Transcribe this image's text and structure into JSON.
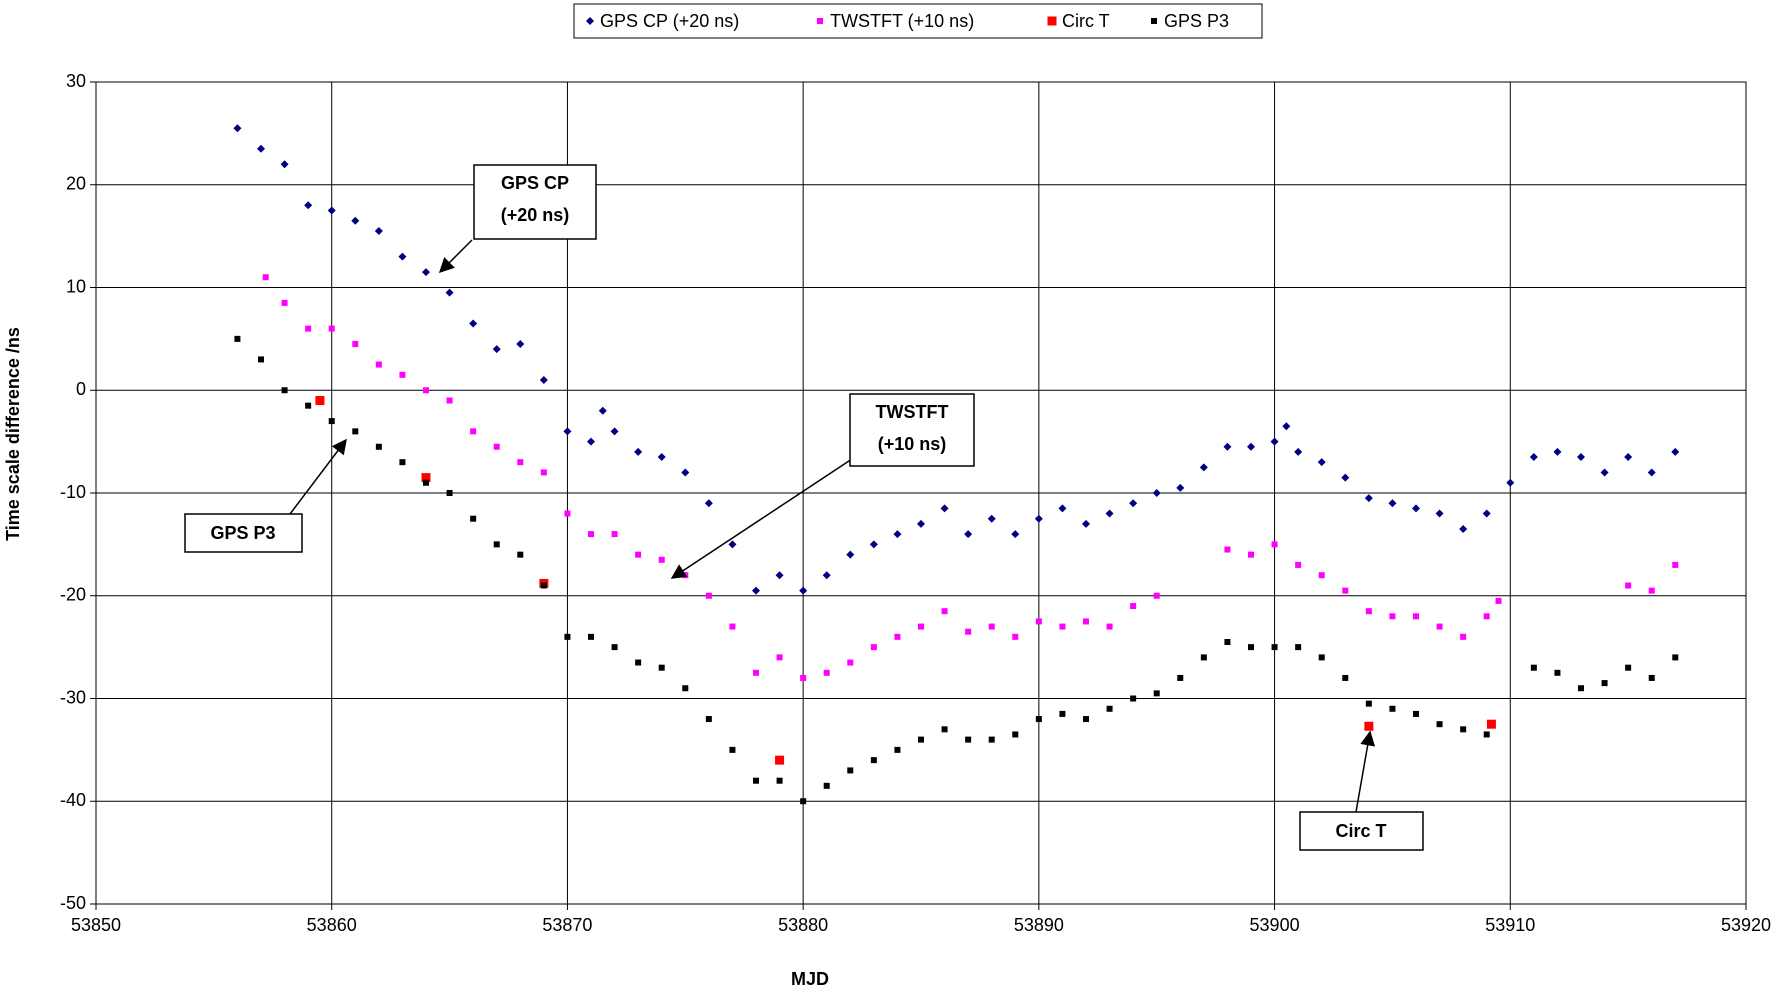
{
  "chart_data": {
    "type": "scatter",
    "xlabel": "MJD",
    "ylabel": "Time scale difference /ns",
    "xlim": [
      53850,
      53920
    ],
    "xticks": [
      53850,
      53860,
      53870,
      53880,
      53890,
      53900,
      53910,
      53920
    ],
    "ylim": [
      -50,
      30
    ],
    "yticks": [
      -50,
      -40,
      -30,
      -20,
      -10,
      0,
      10,
      20,
      30
    ],
    "grid": true,
    "legend": "top",
    "series": [
      {
        "name": "GPS CP (+20 ns)",
        "color": "#000080",
        "marker": "diamond",
        "x": [
          53856,
          53857,
          53858,
          53859,
          53860,
          53861,
          53862,
          53863,
          53864,
          53865,
          53866,
          53867,
          53868,
          53869,
          53870,
          53871,
          53871.5,
          53872,
          53873,
          53874,
          53875,
          53876,
          53877,
          53878,
          53879,
          53880,
          53881,
          53882,
          53883,
          53884,
          53885,
          53886,
          53887,
          53888,
          53889,
          53890,
          53891,
          53892,
          53893,
          53894,
          53895,
          53896,
          53897,
          53898,
          53899,
          53900,
          53900.5,
          53901,
          53902,
          53903,
          53904,
          53905,
          53906,
          53907,
          53908,
          53909,
          53910,
          53911,
          53912,
          53913,
          53914,
          53915,
          53916,
          53917
        ],
        "values": [
          25.5,
          23.5,
          22,
          18,
          17.5,
          16.5,
          15.5,
          13,
          11.5,
          9.5,
          6.5,
          4,
          4.5,
          1,
          -4,
          -5,
          -2,
          -4,
          -6,
          -6.5,
          -8,
          -11,
          -15,
          -19.5,
          -18,
          -19.5,
          -18,
          -16,
          -15,
          -14,
          -13,
          -11.5,
          -14,
          -12.5,
          -14,
          -12.5,
          -11.5,
          -13,
          -12,
          -11,
          -10,
          -9.5,
          -7.5,
          -5.5,
          -5.5,
          -5,
          -3.5,
          -6,
          -7,
          -8.5,
          -10.5,
          -11,
          -11.5,
          -12,
          -13.5,
          -12,
          -9,
          -6.5,
          -6,
          -6.5,
          -8,
          -6.5,
          -8,
          -6
        ]
      },
      {
        "name": "TWSTFT (+10 ns)",
        "color": "#FF00FF",
        "marker": "square",
        "x": [
          53857.2,
          53858,
          53859,
          53860,
          53861,
          53862,
          53863,
          53864,
          53865,
          53866,
          53867,
          53868,
          53869,
          53870,
          53871,
          53872,
          53873,
          53874,
          53875,
          53876,
          53877,
          53878,
          53879,
          53880,
          53881,
          53882,
          53883,
          53884,
          53885,
          53886,
          53887,
          53888,
          53889,
          53890,
          53891,
          53892,
          53893,
          53894,
          53895,
          53898,
          53899,
          53900,
          53901,
          53902,
          53903,
          53904,
          53905,
          53906,
          53907,
          53908,
          53909,
          53909.5,
          53915,
          53916,
          53917
        ],
        "values": [
          11,
          8.5,
          6,
          6,
          4.5,
          2.5,
          1.5,
          0,
          -1,
          -4,
          -5.5,
          -7,
          -8,
          -12,
          -14,
          -14,
          -16,
          -16.5,
          -18,
          -20,
          -23,
          -27.5,
          -26,
          -28,
          -27.5,
          -26.5,
          -25,
          -24,
          -23,
          -21.5,
          -23.5,
          -23,
          -24,
          -22.5,
          -23,
          -22.5,
          -23,
          -21,
          -20,
          -15.5,
          -16,
          -15,
          -17,
          -18,
          -19.5,
          -21.5,
          -22,
          -22,
          -23,
          -24,
          -22,
          -20.5,
          -19,
          -19.5,
          -17
        ]
      },
      {
        "name": "Circ T",
        "color": "#FF0000",
        "marker": "bigsquare",
        "x": [
          53859.5,
          53864,
          53869,
          53879,
          53904,
          53909.2
        ],
        "values": [
          -1,
          -8.5,
          -18.8,
          -36,
          -32.7,
          -32.5
        ]
      },
      {
        "name": "GPS P3",
        "color": "#000000",
        "marker": "square",
        "x": [
          53856,
          53857,
          53858,
          53859,
          53860,
          53861,
          53862,
          53863,
          53864,
          53865,
          53866,
          53867,
          53868,
          53869,
          53870,
          53871,
          53872,
          53873,
          53874,
          53875,
          53876,
          53877,
          53878,
          53879,
          53880,
          53881,
          53882,
          53883,
          53884,
          53885,
          53886,
          53887,
          53888,
          53889,
          53890,
          53891,
          53892,
          53893,
          53894,
          53895,
          53896,
          53897,
          53898,
          53899,
          53900,
          53901,
          53902,
          53903,
          53904,
          53905,
          53906,
          53907,
          53908,
          53909,
          53911,
          53912,
          53913,
          53914,
          53915,
          53916,
          53917
        ],
        "values": [
          5,
          3,
          0,
          -1.5,
          -3,
          -4,
          -5.5,
          -7,
          -9,
          -10,
          -12.5,
          -15,
          -16,
          -19,
          -24,
          -24,
          -25,
          -26.5,
          -27,
          -29,
          -32,
          -35,
          -38,
          -38,
          -40,
          -38.5,
          -37,
          -36,
          -35,
          -34,
          -33,
          -34,
          -34,
          -33.5,
          -32,
          -31.5,
          -32,
          -31,
          -30,
          -29.5,
          -28,
          -26,
          -24.5,
          -25,
          -25,
          -25,
          -26,
          -28,
          -30.5,
          -31,
          -31.5,
          -32.5,
          -33,
          -33.5,
          -27,
          -27.5,
          -29,
          -28.5,
          -27,
          -28,
          -26
        ]
      }
    ],
    "annotations": [
      {
        "lines": [
          "GPS CP",
          "(+20 ns)"
        ]
      },
      {
        "lines": [
          "TWSTFT",
          "(+10 ns)"
        ]
      },
      {
        "lines": [
          "GPS P3"
        ]
      },
      {
        "lines": [
          "Circ T"
        ]
      }
    ]
  }
}
